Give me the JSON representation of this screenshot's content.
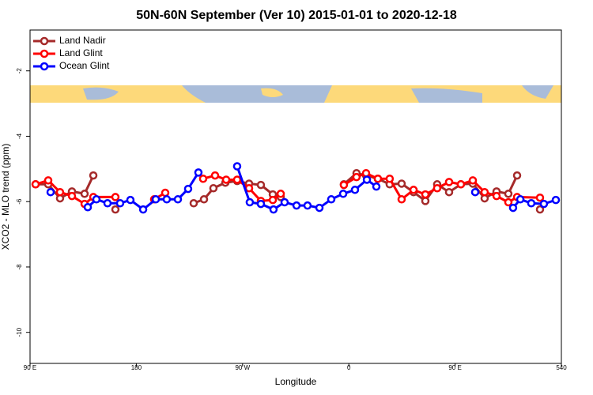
{
  "chart_data": {
    "type": "line",
    "title": "50N-60N September (Ver 10)   2015-01-01 to 2020-12-18",
    "x_label": "Longitude",
    "y_label": "XCO2 - MLO trend (ppm)",
    "xlim": [
      90,
      540
    ],
    "xticks": [
      {
        "value": 90,
        "label": "90 E"
      },
      180,
      {
        "value": 270,
        "label": "90 W"
      },
      {
        "value": 360,
        "label": "0"
      },
      {
        "value": 450,
        "label": "90 E"
      },
      540
    ],
    "ylim": [
      -10.95,
      -0.75
    ],
    "yticks": [
      -2,
      -4,
      -6,
      -8,
      -10
    ],
    "legend": "top-left",
    "series": [
      {
        "name": "Land Nadir",
        "color": "#a52a2a",
        "x": [
          94.7,
          105.4,
          115.4,
          125.5,
          136.2,
          143.6,
          null,
          162.3,
          null,
          228.6,
          237.3,
          245.3,
          255.4,
          265.4,
          275.5,
          285.5,
          295.6,
          302.3,
          null,
          355.8,
          366.5,
          374.6,
          384.6,
          394.6,
          404.7,
          414.8,
          424.8,
          434.8,
          444.9,
          454.9,
          465.0,
          475.0,
          485.1,
          495.1,
          502.5,
          null,
          521.9
        ],
        "values": [
          -5.47,
          -5.47,
          -5.9,
          -5.69,
          -5.76,
          -5.2,
          null,
          -6.24,
          null,
          -6.05,
          -5.93,
          -5.59,
          -5.42,
          -5.37,
          -5.45,
          -5.49,
          -5.78,
          -5.86,
          null,
          -5.47,
          -5.13,
          -5.2,
          -5.3,
          -5.47,
          -5.45,
          -5.71,
          -5.98,
          -5.47,
          -5.71,
          -5.47,
          -5.45,
          -5.9,
          -5.69,
          -5.76,
          -5.2,
          null,
          -6.24
        ]
      },
      {
        "name": "Land Glint",
        "color": "#ff0000",
        "x": [
          94.7,
          105.4,
          115.4,
          125.5,
          136.2,
          143.6,
          162.3,
          null,
          195.1,
          204.5,
          null,
          236.6,
          246.7,
          256.1,
          265.4,
          275.5,
          285.5,
          295.6,
          302.3,
          null,
          355.8,
          366.5,
          374.6,
          384.6,
          394.6,
          404.7,
          414.8,
          424.8,
          434.8,
          444.9,
          454.9,
          465.0,
          475.0,
          485.1,
          495.1,
          502.5,
          521.9
        ],
        "values": [
          -5.47,
          -5.35,
          -5.71,
          -5.83,
          -6.07,
          -5.86,
          -5.86,
          null,
          -5.93,
          -5.73,
          null,
          -5.3,
          -5.2,
          -5.33,
          -5.33,
          -5.59,
          -5.98,
          -5.95,
          -5.76,
          null,
          -5.49,
          -5.25,
          -5.13,
          -5.3,
          -5.3,
          -5.93,
          -5.64,
          -5.78,
          -5.59,
          -5.4,
          -5.47,
          -5.35,
          -5.71,
          -5.83,
          -6.02,
          -5.86,
          -5.88
        ]
      },
      {
        "name": "Ocean Glint",
        "color": "#0000ff",
        "x": [
          107.4,
          null,
          138.9,
          146.2,
          155.6,
          166.3,
          175.0,
          185.8,
          196.5,
          205.8,
          215.2,
          223.9,
          232.6,
          null,
          265.4,
          276.1,
          285.5,
          296.2,
          305.6,
          315.7,
          325.0,
          335.1,
          345.1,
          355.2,
          365.2,
          375.3,
          383.3,
          null,
          467.0,
          null,
          499.1,
          505.2,
          514.5,
          525.2,
          535.3
        ],
        "values": [
          -5.71,
          null,
          -6.17,
          -5.93,
          -6.05,
          -6.05,
          -5.95,
          -6.24,
          -5.93,
          -5.93,
          -5.93,
          -5.61,
          -5.11,
          null,
          -4.92,
          -6.02,
          -6.07,
          -6.24,
          -6.02,
          -6.12,
          -6.12,
          -6.19,
          -5.93,
          -5.76,
          -5.64,
          -5.33,
          -5.54,
          null,
          -5.71,
          null,
          -6.19,
          -5.93,
          -6.05,
          -6.07,
          -5.95
        ]
      }
    ]
  }
}
